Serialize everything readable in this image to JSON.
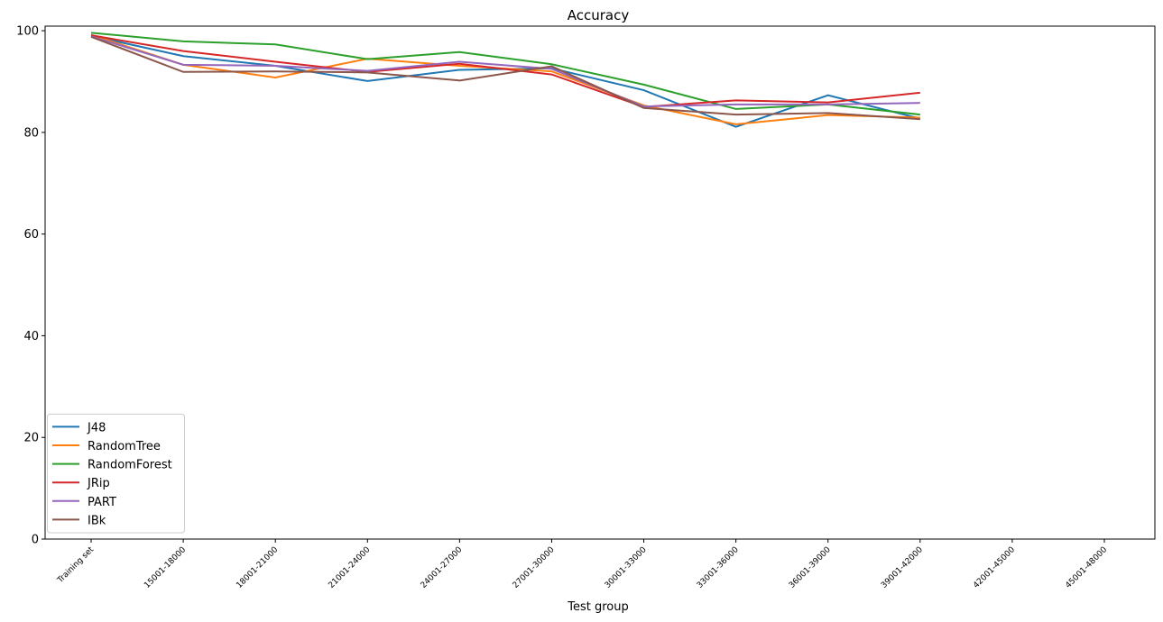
{
  "chart_data": {
    "type": "line",
    "title": "Accuracy",
    "x_label": "Test group",
    "categories": [
      "Training set",
      "15001-18000",
      "18001-21000",
      "21001-24000",
      "24001-27000",
      "27001-30000",
      "30001-33000",
      "33001-36000",
      "36001-39000",
      "39001-42000",
      "42001-45000",
      "45001-48000"
    ],
    "series": [
      {
        "name": "J48",
        "color": "#1f77b4",
        "values": [
          99.0,
          95.0,
          93.1,
          90.1,
          92.3,
          92.6,
          88.3,
          81.1,
          87.3,
          82.7,
          null,
          null
        ]
      },
      {
        "name": "RandomTree",
        "color": "#ff7f0e",
        "values": [
          99.2,
          93.3,
          90.8,
          94.5,
          93.1,
          92.0,
          85.3,
          81.6,
          83.4,
          82.9,
          null,
          null
        ]
      },
      {
        "name": "RandomForest",
        "color": "#2ca02c",
        "values": [
          99.6,
          97.9,
          97.3,
          94.4,
          95.8,
          93.4,
          89.4,
          84.6,
          85.5,
          83.5,
          null,
          null
        ]
      },
      {
        "name": "JRip",
        "color": "#d62728",
        "values": [
          99.1,
          96.0,
          93.9,
          91.9,
          93.5,
          91.4,
          85.0,
          86.3,
          85.9,
          87.8,
          null,
          null
        ]
      },
      {
        "name": "PART",
        "color": "#9467bd",
        "values": [
          98.9,
          93.3,
          93.1,
          92.1,
          93.9,
          92.5,
          85.1,
          85.5,
          85.5,
          85.8,
          null,
          null
        ]
      },
      {
        "name": "IBk",
        "color": "#8c564b",
        "values": [
          98.8,
          91.9,
          92.0,
          91.8,
          90.2,
          93.0,
          84.8,
          83.5,
          83.8,
          82.6,
          null,
          null
        ]
      }
    ],
    "ylim": [
      0,
      100.9
    ],
    "yticks": [
      0,
      20,
      40,
      60,
      80,
      100
    ],
    "legend": "lower left",
    "grid": false
  }
}
